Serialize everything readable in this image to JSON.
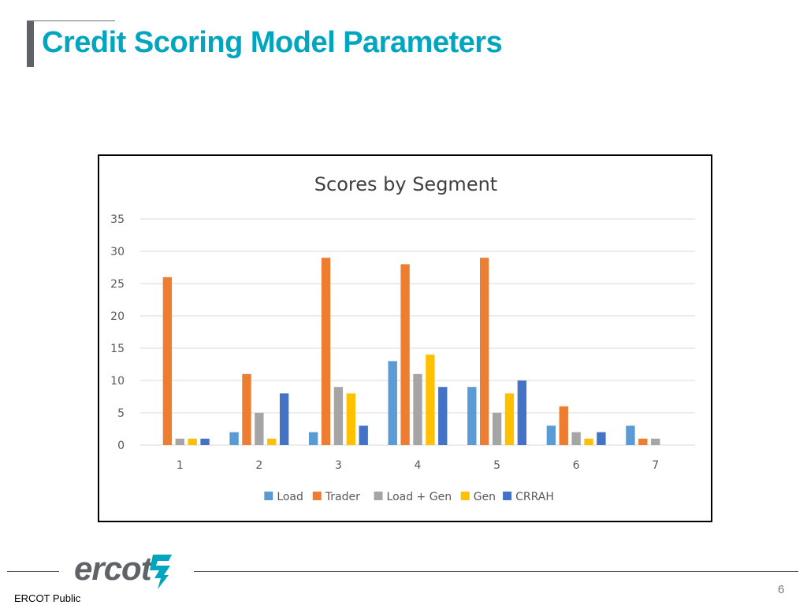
{
  "slide": {
    "title": "Credit Scoring Model Parameters",
    "footer_label": "ERCOT Public",
    "page_number": "6",
    "logo_text": "ercot"
  },
  "colors": {
    "title": "#00a5c0",
    "accent_bar": "#5f6368",
    "grid": "#d9d9d9"
  },
  "chart_data": {
    "type": "bar",
    "title": "Scores by Segment",
    "categories": [
      "1",
      "2",
      "3",
      "4",
      "5",
      "6",
      "7"
    ],
    "ylim": [
      0,
      35
    ],
    "yticks": [
      0,
      5,
      10,
      15,
      20,
      25,
      30,
      35
    ],
    "grid": true,
    "legend_position": "bottom",
    "series": [
      {
        "name": "Load",
        "color": "#5b9bd5",
        "values": [
          0,
          2,
          2,
          13,
          9,
          3,
          3
        ]
      },
      {
        "name": "Trader",
        "color": "#ed7d31",
        "values": [
          26,
          11,
          29,
          28,
          29,
          6,
          1
        ]
      },
      {
        "name": "Load + Gen",
        "color": "#a5a5a5",
        "values": [
          1,
          5,
          9,
          11,
          5,
          2,
          1
        ]
      },
      {
        "name": "Gen",
        "color": "#ffc000",
        "values": [
          1,
          1,
          8,
          14,
          8,
          1,
          0
        ]
      },
      {
        "name": "CRRAH",
        "color": "#4472c4",
        "values": [
          1,
          8,
          3,
          9,
          10,
          2,
          0
        ]
      }
    ]
  }
}
